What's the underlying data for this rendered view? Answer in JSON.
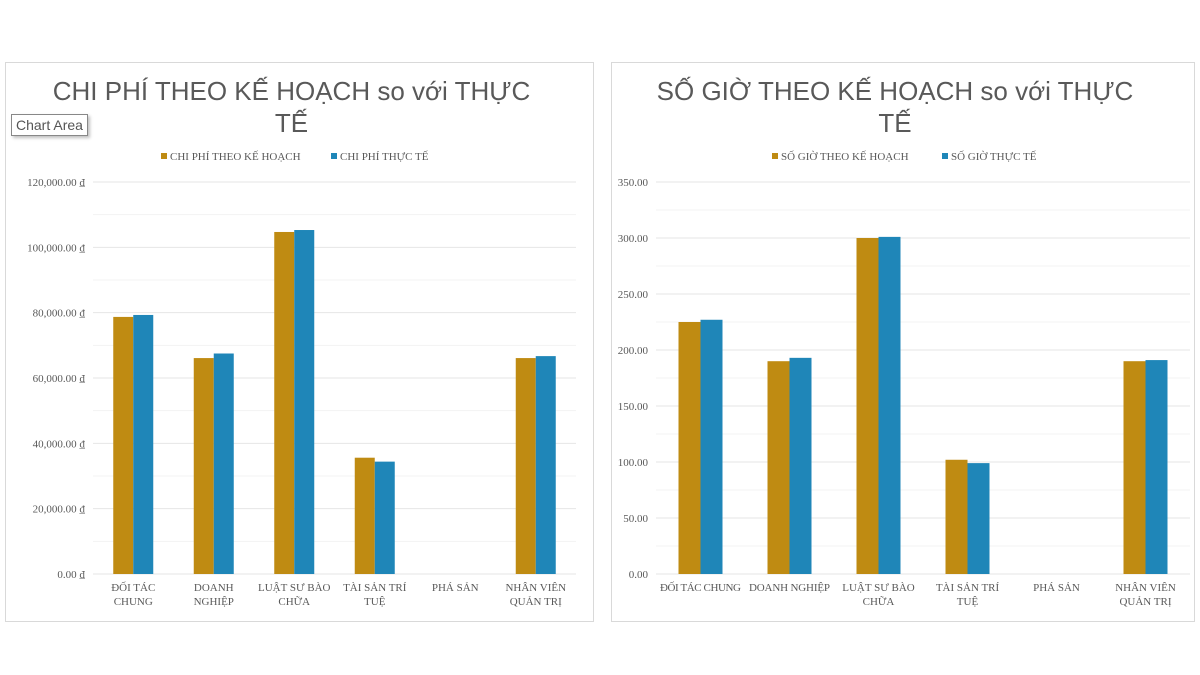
{
  "tooltip": "Chart Area",
  "colors": {
    "planned": "#BF8B12",
    "actual": "#1F86B8",
    "grid": "#e6e6e6",
    "text": "#595959"
  },
  "chart_data": [
    {
      "type": "bar",
      "title_lines": [
        "CHI PHÍ THEO KẾ HOẠCH so với THỰC",
        "TẾ"
      ],
      "categories": [
        [
          "ĐỐI TÁC",
          "CHUNG"
        ],
        [
          "DOANH",
          "NGHIỆP"
        ],
        [
          "LUẬT SƯ BÀO",
          "CHỮA"
        ],
        [
          "TÀI SẢN TRÍ",
          "TUỆ"
        ],
        [
          "PHÁ SẢN"
        ],
        [
          "NHÂN VIÊN",
          "QUẢN TRỊ"
        ]
      ],
      "series": [
        {
          "name": "CHI PHÍ THEO KẾ HOẠCH",
          "values": [
            78700,
            66100,
            104700,
            35600,
            0,
            66100
          ]
        },
        {
          "name": "CHI PHÍ THỰC TẾ",
          "values": [
            79300,
            67500,
            105300,
            34400,
            0,
            66700
          ]
        }
      ],
      "ylim": [
        0,
        120000
      ],
      "yticks": [
        "0.00 ₫",
        "20,000.00 ₫",
        "40,000.00 ₫",
        "60,000.00 ₫",
        "80,000.00 ₫",
        "100,000.00 ₫",
        "120,000.00 ₫"
      ],
      "grid": true,
      "legend": "top"
    },
    {
      "type": "bar",
      "title_lines": [
        "SỐ GIỜ THEO KẾ HOẠCH so với THỰC",
        "TẾ"
      ],
      "categories": [
        [
          "ĐỐI TÁC CHUNG"
        ],
        [
          "DOANH NGHIỆP"
        ],
        [
          "LUẬT SƯ BÀO",
          "CHỮA"
        ],
        [
          "TÀI SẢN TRÍ",
          "TUỆ"
        ],
        [
          "PHÁ SẢN"
        ],
        [
          "NHÂN VIÊN",
          "QUẢN TRỊ"
        ]
      ],
      "series": [
        {
          "name": "SỐ GIỜ THEO KẾ HOẠCH",
          "values": [
            225,
            190,
            300,
            102,
            0,
            190
          ]
        },
        {
          "name": "SỐ GIỜ THỰC TẾ",
          "values": [
            227,
            193,
            301,
            99,
            0,
            191
          ]
        }
      ],
      "ylim": [
        0,
        350
      ],
      "yticks": [
        "0.00",
        "50.00",
        "100.00",
        "150.00",
        "200.00",
        "250.00",
        "300.00",
        "350.00"
      ],
      "grid": true,
      "legend": "top"
    }
  ]
}
